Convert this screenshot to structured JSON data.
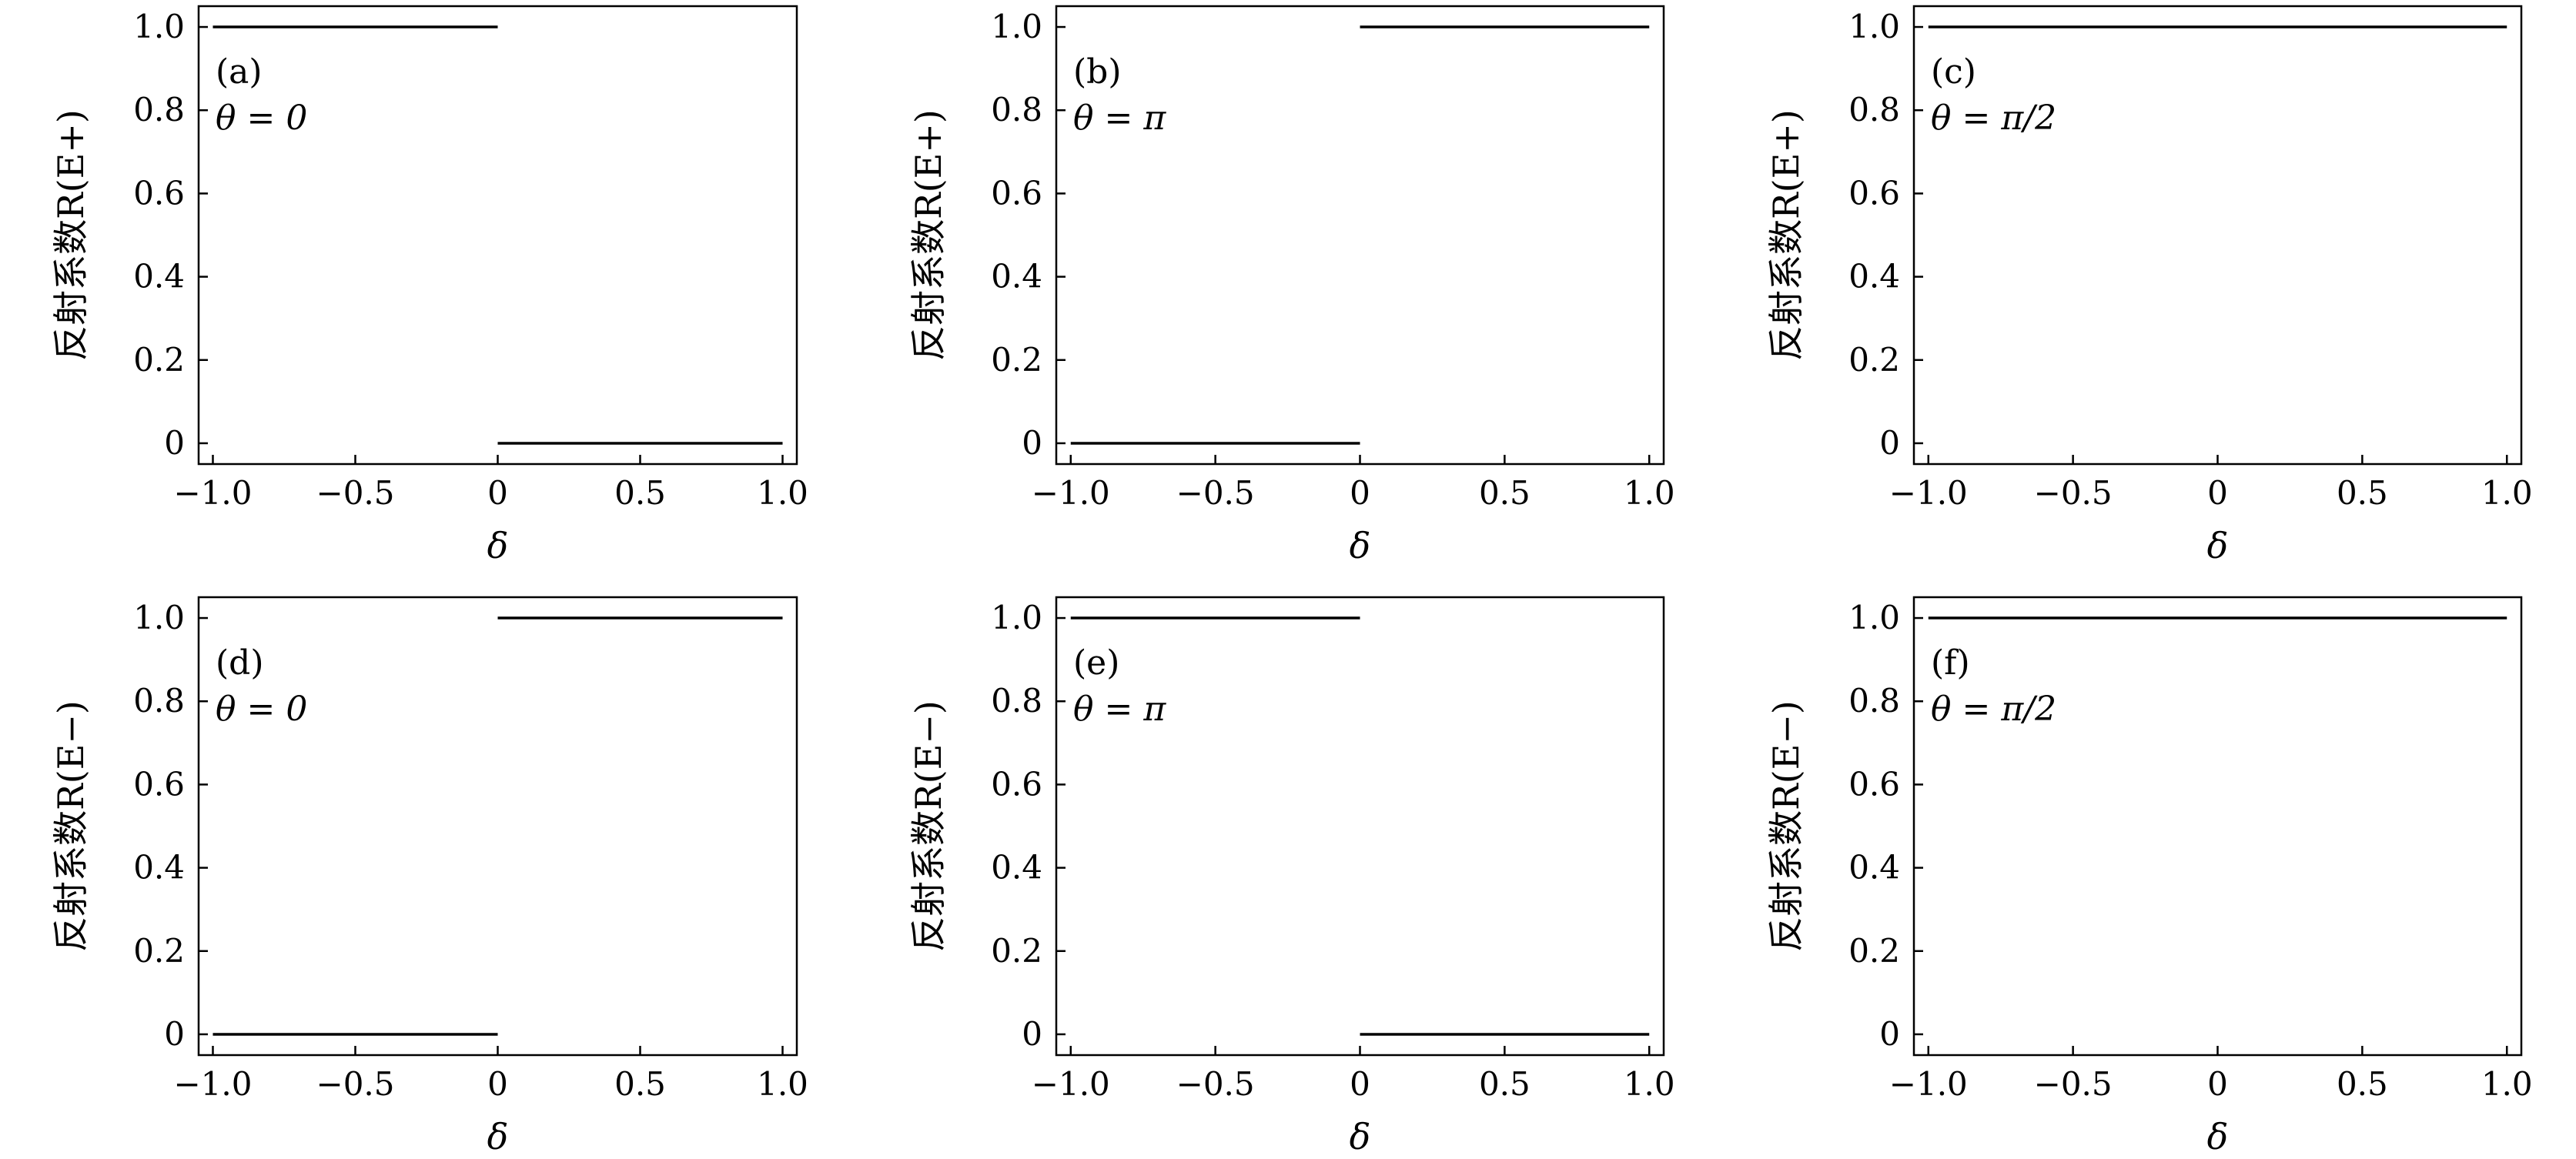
{
  "chart_data": [
    {
      "type": "line",
      "panel": "(a)",
      "annotation": "θ = 0",
      "xlabel": "δ",
      "ylabel": "反射系数R(E+)",
      "xlim": [
        -1.05,
        1.05
      ],
      "ylim": [
        -0.05,
        1.05
      ],
      "xticks": [
        -1.0,
        -0.5,
        0,
        0.5,
        1.0
      ],
      "xtick_labels": [
        "−1.0",
        "−0.5",
        "0",
        "0.5",
        "1.0"
      ],
      "yticks": [
        0,
        0.2,
        0.4,
        0.6,
        0.8,
        1.0
      ],
      "ytick_labels": [
        "0",
        "0.2",
        "0.4",
        "0.6",
        "0.8",
        "1.0"
      ],
      "segments": [
        {
          "x": [
            -1.0,
            0.0
          ],
          "y": [
            1.0,
            1.0
          ]
        },
        {
          "x": [
            0.0,
            1.0
          ],
          "y": [
            0.0,
            0.0
          ]
        }
      ]
    },
    {
      "type": "line",
      "panel": "(b)",
      "annotation": "θ = π",
      "xlabel": "δ",
      "ylabel": "反射系数R(E+)",
      "xlim": [
        -1.05,
        1.05
      ],
      "ylim": [
        -0.05,
        1.05
      ],
      "xticks": [
        -1.0,
        -0.5,
        0,
        0.5,
        1.0
      ],
      "xtick_labels": [
        "−1.0",
        "−0.5",
        "0",
        "0.5",
        "1.0"
      ],
      "yticks": [
        0,
        0.2,
        0.4,
        0.6,
        0.8,
        1.0
      ],
      "ytick_labels": [
        "0",
        "0.2",
        "0.4",
        "0.6",
        "0.8",
        "1.0"
      ],
      "segments": [
        {
          "x": [
            -1.0,
            0.0
          ],
          "y": [
            0.0,
            0.0
          ]
        },
        {
          "x": [
            0.0,
            1.0
          ],
          "y": [
            1.0,
            1.0
          ]
        }
      ]
    },
    {
      "type": "line",
      "panel": "(c)",
      "annotation": "θ = π/2",
      "xlabel": "δ",
      "ylabel": "反射系数R(E+)",
      "xlim": [
        -1.05,
        1.05
      ],
      "ylim": [
        -0.05,
        1.05
      ],
      "xticks": [
        -1.0,
        -0.5,
        0,
        0.5,
        1.0
      ],
      "xtick_labels": [
        "−1.0",
        "−0.5",
        "0",
        "0.5",
        "1.0"
      ],
      "yticks": [
        0,
        0.2,
        0.4,
        0.6,
        0.8,
        1.0
      ],
      "ytick_labels": [
        "0",
        "0.2",
        "0.4",
        "0.6",
        "0.8",
        "1.0"
      ],
      "segments": [
        {
          "x": [
            -1.0,
            1.0
          ],
          "y": [
            1.0,
            1.0
          ]
        }
      ]
    },
    {
      "type": "line",
      "panel": "(d)",
      "annotation": "θ = 0",
      "xlabel": "δ",
      "ylabel": "反射系数R(E−)",
      "xlim": [
        -1.05,
        1.05
      ],
      "ylim": [
        -0.05,
        1.05
      ],
      "xticks": [
        -1.0,
        -0.5,
        0,
        0.5,
        1.0
      ],
      "xtick_labels": [
        "−1.0",
        "−0.5",
        "0",
        "0.5",
        "1.0"
      ],
      "yticks": [
        0,
        0.2,
        0.4,
        0.6,
        0.8,
        1.0
      ],
      "ytick_labels": [
        "0",
        "0.2",
        "0.4",
        "0.6",
        "0.8",
        "1.0"
      ],
      "segments": [
        {
          "x": [
            -1.0,
            0.0
          ],
          "y": [
            0.0,
            0.0
          ]
        },
        {
          "x": [
            0.0,
            1.0
          ],
          "y": [
            1.0,
            1.0
          ]
        }
      ]
    },
    {
      "type": "line",
      "panel": "(e)",
      "annotation": "θ = π",
      "xlabel": "δ",
      "ylabel": "反射系数R(E−)",
      "xlim": [
        -1.05,
        1.05
      ],
      "ylim": [
        -0.05,
        1.05
      ],
      "xticks": [
        -1.0,
        -0.5,
        0,
        0.5,
        1.0
      ],
      "xtick_labels": [
        "−1.0",
        "−0.5",
        "0",
        "0.5",
        "1.0"
      ],
      "yticks": [
        0,
        0.2,
        0.4,
        0.6,
        0.8,
        1.0
      ],
      "ytick_labels": [
        "0",
        "0.2",
        "0.4",
        "0.6",
        "0.8",
        "1.0"
      ],
      "segments": [
        {
          "x": [
            -1.0,
            0.0
          ],
          "y": [
            1.0,
            1.0
          ]
        },
        {
          "x": [
            0.0,
            1.0
          ],
          "y": [
            0.0,
            0.0
          ]
        }
      ]
    },
    {
      "type": "line",
      "panel": "(f)",
      "annotation": "θ = π/2",
      "xlabel": "δ",
      "ylabel": "反射系数R(E−)",
      "xlim": [
        -1.05,
        1.05
      ],
      "ylim": [
        -0.05,
        1.05
      ],
      "xticks": [
        -1.0,
        -0.5,
        0,
        0.5,
        1.0
      ],
      "xtick_labels": [
        "−1.0",
        "−0.5",
        "0",
        "0.5",
        "1.0"
      ],
      "yticks": [
        0,
        0.2,
        0.4,
        0.6,
        0.8,
        1.0
      ],
      "ytick_labels": [
        "0",
        "0.2",
        "0.4",
        "0.6",
        "0.8",
        "1.0"
      ],
      "segments": [
        {
          "x": [
            -1.0,
            1.0
          ],
          "y": [
            1.0,
            1.0
          ]
        }
      ]
    }
  ]
}
